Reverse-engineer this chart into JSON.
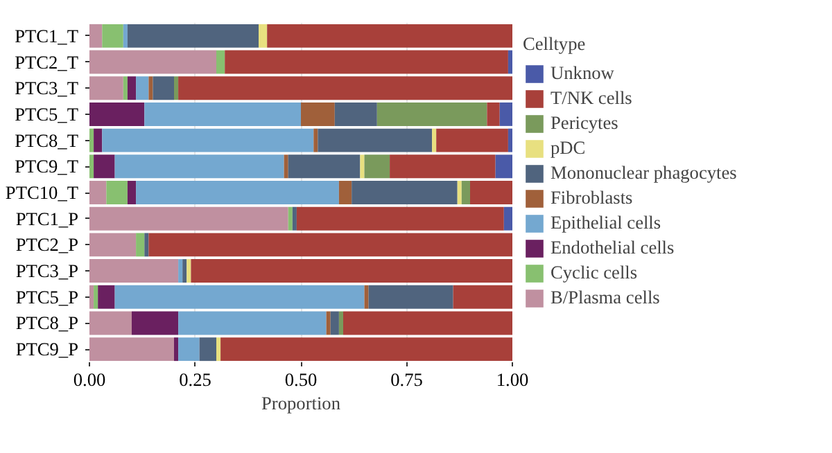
{
  "chart_data": {
    "type": "bar",
    "orientation": "horizontal",
    "stacked": true,
    "xlabel": "Proportion",
    "legend_title": "Celltype",
    "legend": "right",
    "grid": "x",
    "categories": [
      "PTC1_T",
      "PTC2_T",
      "PTC3_T",
      "PTC5_T",
      "PTC8_T",
      "PTC9_T",
      "PTC10_T",
      "PTC1_P",
      "PTC2_P",
      "PTC3_P",
      "PTC5_P",
      "PTC8_P",
      "PTC9_P"
    ],
    "xlim": [
      0,
      1
    ],
    "xticks": [
      {
        "value": 0,
        "label": "0.00"
      },
      {
        "value": 0.25,
        "label": "0.25"
      },
      {
        "value": 0.5,
        "label": "0.50"
      },
      {
        "value": 0.75,
        "label": "0.75"
      },
      {
        "value": 1,
        "label": "1.00"
      }
    ],
    "series": [
      {
        "name": "B/Plasma cells",
        "color": "#c090a0",
        "values": [
          0.03,
          0.3,
          0.08,
          0,
          0,
          0,
          0.04,
          0.47,
          0.11,
          0.21,
          0.01,
          0.1,
          0.2
        ]
      },
      {
        "name": "Cyclic cells",
        "color": "#88c070",
        "values": [
          0.05,
          0.02,
          0.01,
          0,
          0.01,
          0.01,
          0.05,
          0.01,
          0.02,
          0,
          0.01,
          0,
          0
        ]
      },
      {
        "name": "Endothelial cells",
        "color": "#6a2060",
        "values": [
          0,
          0,
          0.02,
          0.13,
          0.02,
          0.05,
          0.02,
          0,
          0,
          0,
          0.04,
          0.11,
          0.01
        ]
      },
      {
        "name": "Epithelial cells",
        "color": "#74a8d0",
        "values": [
          0.01,
          0,
          0.03,
          0.37,
          0.5,
          0.4,
          0.48,
          0,
          0,
          0.01,
          0.59,
          0.35,
          0.05
        ]
      },
      {
        "name": "Fibroblasts",
        "color": "#a0603a",
        "values": [
          0,
          0,
          0.01,
          0.08,
          0.01,
          0.01,
          0.03,
          0,
          0,
          0,
          0.01,
          0.01,
          0
        ]
      },
      {
        "name": "Mononuclear phagocytes",
        "color": "#50647e",
        "values": [
          0.31,
          0,
          0.05,
          0.1,
          0.27,
          0.17,
          0.25,
          0.01,
          0.01,
          0.01,
          0.2,
          0.02,
          0.04
        ]
      },
      {
        "name": "pDC",
        "color": "#e8e080",
        "values": [
          0.02,
          0,
          0,
          0,
          0.01,
          0.01,
          0.01,
          0,
          0,
          0.01,
          0,
          0,
          0.01
        ]
      },
      {
        "name": "Pericytes",
        "color": "#7a9a5c",
        "values": [
          0,
          0,
          0.01,
          0.26,
          0,
          0.06,
          0.02,
          0,
          0,
          0,
          0,
          0.01,
          0
        ]
      },
      {
        "name": "T/NK cells",
        "color": "#a8403a",
        "values": [
          0.58,
          0.67,
          0.79,
          0.03,
          0.17,
          0.25,
          0.1,
          0.49,
          0.86,
          0.76,
          0.14,
          0.4,
          0.69
        ]
      },
      {
        "name": "Unknow",
        "color": "#4a5aa8",
        "values": [
          0,
          0.01,
          0,
          0.03,
          0.01,
          0.04,
          0,
          0.02,
          0,
          0,
          0,
          0,
          0
        ]
      }
    ]
  }
}
